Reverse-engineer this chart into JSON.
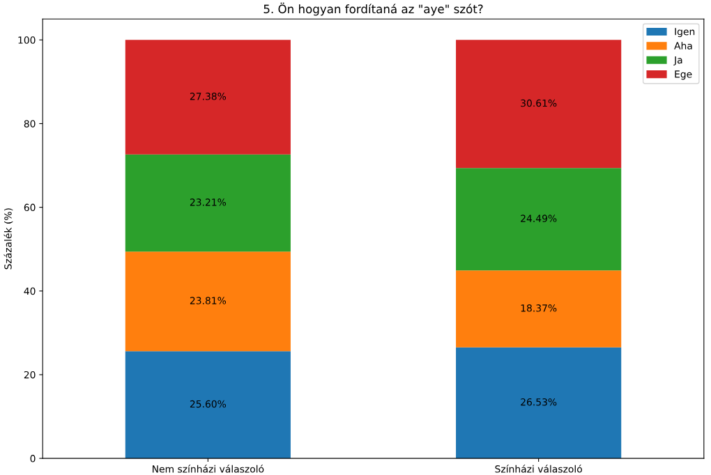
{
  "chart_data": {
    "type": "bar",
    "stacked": true,
    "title": "5. Ön hogyan fordítaná az \"aye\" szót?",
    "ylabel": "Százalék (%)",
    "categories": [
      "Nem színházi válaszoló",
      "Színházi válaszoló"
    ],
    "series": [
      {
        "name": "Igen",
        "color": "#1f77b4",
        "values": [
          25.6,
          26.53
        ],
        "value_labels": [
          "25.60%",
          "26.53%"
        ]
      },
      {
        "name": "Aha",
        "color": "#ff7f0e",
        "values": [
          23.81,
          18.37
        ],
        "value_labels": [
          "23.81%",
          "18.37%"
        ]
      },
      {
        "name": "Ja",
        "color": "#2ca02c",
        "values": [
          23.21,
          24.49
        ],
        "value_labels": [
          "23.21%",
          "24.49%"
        ]
      },
      {
        "name": "Ege",
        "color": "#d62728",
        "values": [
          27.38,
          30.61
        ],
        "value_labels": [
          "27.38%",
          "30.61%"
        ]
      }
    ],
    "ylim": [
      0,
      105
    ],
    "yticks": [
      0,
      20,
      40,
      60,
      80,
      100
    ],
    "legend": "top right",
    "grid": false
  }
}
